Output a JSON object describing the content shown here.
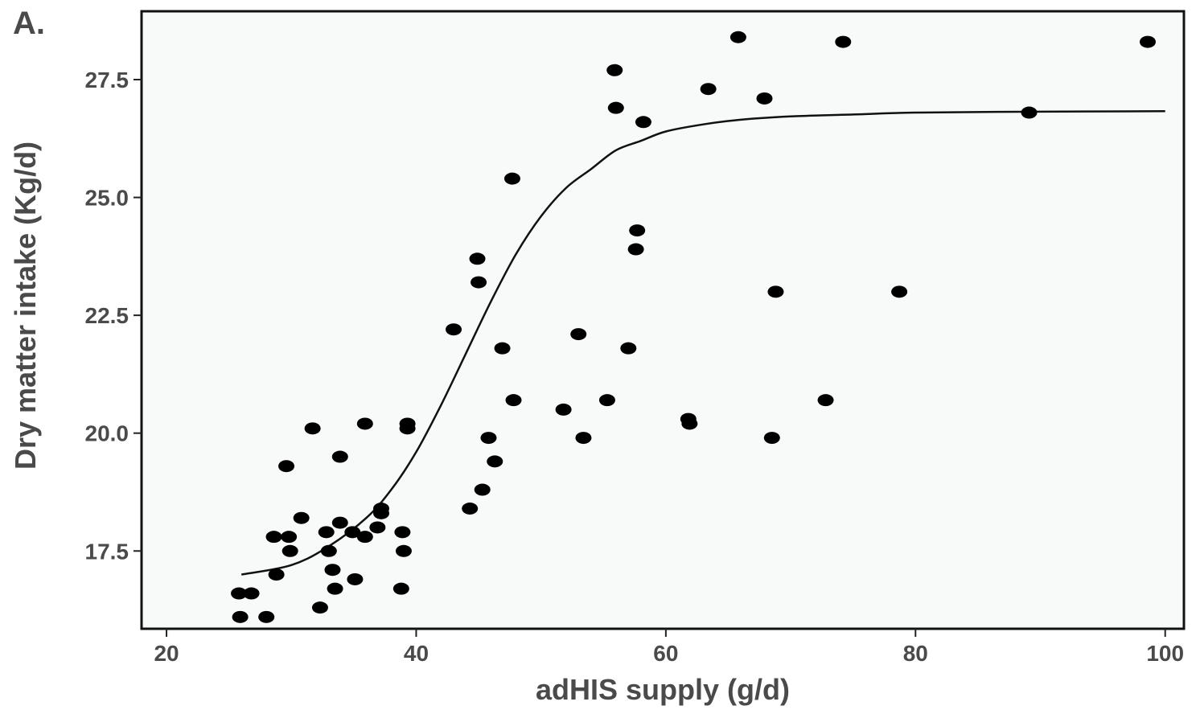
{
  "panel_label": "A.",
  "chart_data": {
    "type": "scatter",
    "xlabel": "adHIS supply (g/d)",
    "ylabel": "Dry matter intake (Kg/d)",
    "xlim": [
      18,
      101.5
    ],
    "ylim": [
      15.85,
      28.95
    ],
    "x_ticks": [
      20,
      40,
      60,
      80,
      100
    ],
    "y_ticks": [
      17.5,
      20.0,
      22.5,
      25.0,
      27.5
    ],
    "x_tick_labels": [
      "20",
      "40",
      "60",
      "80",
      "100"
    ],
    "y_tick_labels": [
      "17.5",
      "20.0",
      "22.5",
      "25.0",
      "27.5"
    ],
    "grid": false,
    "points": [
      {
        "x": 25.8,
        "y": 16.6
      },
      {
        "x": 26.8,
        "y": 16.6
      },
      {
        "x": 25.9,
        "y": 16.1
      },
      {
        "x": 28.0,
        "y": 16.1
      },
      {
        "x": 28.6,
        "y": 17.8
      },
      {
        "x": 29.8,
        "y": 17.8
      },
      {
        "x": 28.8,
        "y": 17.0
      },
      {
        "x": 29.9,
        "y": 17.5
      },
      {
        "x": 29.6,
        "y": 19.3
      },
      {
        "x": 31.7,
        "y": 20.1
      },
      {
        "x": 30.8,
        "y": 18.2
      },
      {
        "x": 32.3,
        "y": 16.3
      },
      {
        "x": 32.8,
        "y": 17.9
      },
      {
        "x": 33.0,
        "y": 17.5
      },
      {
        "x": 33.3,
        "y": 17.1
      },
      {
        "x": 33.5,
        "y": 16.7
      },
      {
        "x": 33.9,
        "y": 18.1
      },
      {
        "x": 33.9,
        "y": 19.5
      },
      {
        "x": 34.9,
        "y": 17.9
      },
      {
        "x": 35.1,
        "y": 16.9
      },
      {
        "x": 35.9,
        "y": 17.8
      },
      {
        "x": 35.9,
        "y": 20.2
      },
      {
        "x": 36.9,
        "y": 18.0
      },
      {
        "x": 37.2,
        "y": 18.4
      },
      {
        "x": 37.2,
        "y": 18.3
      },
      {
        "x": 38.8,
        "y": 16.7
      },
      {
        "x": 38.9,
        "y": 17.9
      },
      {
        "x": 39.0,
        "y": 17.5
      },
      {
        "x": 39.3,
        "y": 20.2
      },
      {
        "x": 39.3,
        "y": 20.1
      },
      {
        "x": 43.0,
        "y": 22.2
      },
      {
        "x": 44.3,
        "y": 18.4
      },
      {
        "x": 44.9,
        "y": 23.7
      },
      {
        "x": 45.0,
        "y": 23.2
      },
      {
        "x": 45.3,
        "y": 18.8
      },
      {
        "x": 45.8,
        "y": 19.9
      },
      {
        "x": 46.3,
        "y": 19.4
      },
      {
        "x": 46.9,
        "y": 21.8
      },
      {
        "x": 47.7,
        "y": 25.4
      },
      {
        "x": 47.8,
        "y": 20.7
      },
      {
        "x": 51.8,
        "y": 20.5
      },
      {
        "x": 53.0,
        "y": 22.1
      },
      {
        "x": 53.4,
        "y": 19.9
      },
      {
        "x": 55.3,
        "y": 20.7
      },
      {
        "x": 55.9,
        "y": 27.7
      },
      {
        "x": 56.0,
        "y": 26.9
      },
      {
        "x": 57.0,
        "y": 21.8
      },
      {
        "x": 57.6,
        "y": 23.9
      },
      {
        "x": 57.7,
        "y": 24.3
      },
      {
        "x": 58.2,
        "y": 26.6
      },
      {
        "x": 61.8,
        "y": 20.3
      },
      {
        "x": 61.9,
        "y": 20.2
      },
      {
        "x": 63.4,
        "y": 27.3
      },
      {
        "x": 65.8,
        "y": 28.4
      },
      {
        "x": 67.9,
        "y": 27.1
      },
      {
        "x": 68.5,
        "y": 19.9
      },
      {
        "x": 68.8,
        "y": 23.0
      },
      {
        "x": 72.8,
        "y": 20.7
      },
      {
        "x": 74.2,
        "y": 28.3
      },
      {
        "x": 78.7,
        "y": 23.0
      },
      {
        "x": 89.1,
        "y": 26.8
      },
      {
        "x": 98.6,
        "y": 28.3
      }
    ],
    "fit_line": {
      "x": [
        26,
        30,
        33,
        36,
        38,
        40,
        42,
        44,
        46,
        48,
        50,
        52,
        54,
        56,
        58,
        60,
        63,
        66,
        70,
        75,
        80,
        90,
        100
      ],
      "y": [
        17.0,
        17.2,
        17.6,
        18.2,
        18.8,
        19.6,
        20.6,
        21.7,
        22.8,
        23.8,
        24.6,
        25.2,
        25.6,
        26.0,
        26.2,
        26.4,
        26.55,
        26.65,
        26.72,
        26.76,
        26.8,
        26.82,
        26.83
      ]
    }
  }
}
